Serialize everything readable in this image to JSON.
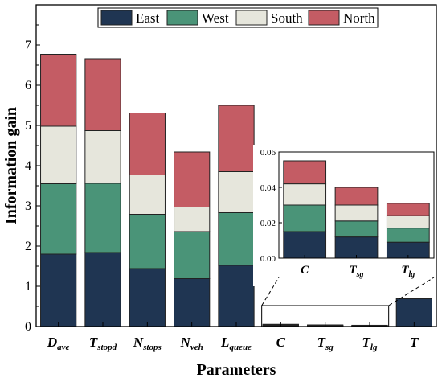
{
  "chart_data": [
    {
      "type": "bar",
      "stacked": true,
      "xlabel": "Parameters",
      "ylabel": "Information gain",
      "ylim": [
        0,
        8
      ],
      "yticks": [
        0,
        1,
        2,
        3,
        4,
        5,
        6,
        7
      ],
      "categories": [
        {
          "base": "D",
          "sub": "ave"
        },
        {
          "base": "T",
          "sub": "stopd"
        },
        {
          "base": "N",
          "sub": "stops"
        },
        {
          "base": "N",
          "sub": "veh"
        },
        {
          "base": "L",
          "sub": "queue"
        },
        {
          "base": "C",
          "sub": ""
        },
        {
          "base": "T",
          "sub": "sg"
        },
        {
          "base": "T",
          "sub": "lg"
        },
        {
          "base": "T",
          "sub": ""
        }
      ],
      "series": [
        {
          "name": "East",
          "color": "#1f3552",
          "values": [
            1.8,
            1.84,
            1.44,
            1.19,
            1.52,
            0.015,
            0.012,
            0.009,
            0.69
          ]
        },
        {
          "name": "West",
          "color": "#4a9478",
          "values": [
            1.75,
            1.72,
            1.35,
            1.17,
            1.31,
            0.015,
            0.009,
            0.008,
            0
          ]
        },
        {
          "name": "South",
          "color": "#e6e6dc",
          "values": [
            1.43,
            1.31,
            0.98,
            0.61,
            1.02,
            0.012,
            0.009,
            0.007,
            0
          ]
        },
        {
          "name": "North",
          "color": "#c45c64",
          "values": [
            1.79,
            1.79,
            1.54,
            1.37,
            1.65,
            0.013,
            0.01,
            0.007,
            0
          ]
        }
      ],
      "legend_position": "top-center",
      "grid": false
    },
    {
      "type": "bar",
      "stacked": true,
      "role": "inset-zoom",
      "ylim": [
        0,
        0.06
      ],
      "yticks": [
        "0.00",
        "0.02",
        "0.04",
        "0.06"
      ],
      "categories": [
        {
          "base": "C",
          "sub": ""
        },
        {
          "base": "T",
          "sub": "sg"
        },
        {
          "base": "T",
          "sub": "lg"
        }
      ],
      "series": [
        {
          "name": "East",
          "color": "#1f3552",
          "values": [
            0.015,
            0.012,
            0.009
          ]
        },
        {
          "name": "West",
          "color": "#4a9478",
          "values": [
            0.015,
            0.009,
            0.008
          ]
        },
        {
          "name": "South",
          "color": "#e6e6dc",
          "values": [
            0.012,
            0.009,
            0.007
          ]
        },
        {
          "name": "North",
          "color": "#c45c64",
          "values": [
            0.013,
            0.01,
            0.007
          ]
        }
      ]
    }
  ]
}
